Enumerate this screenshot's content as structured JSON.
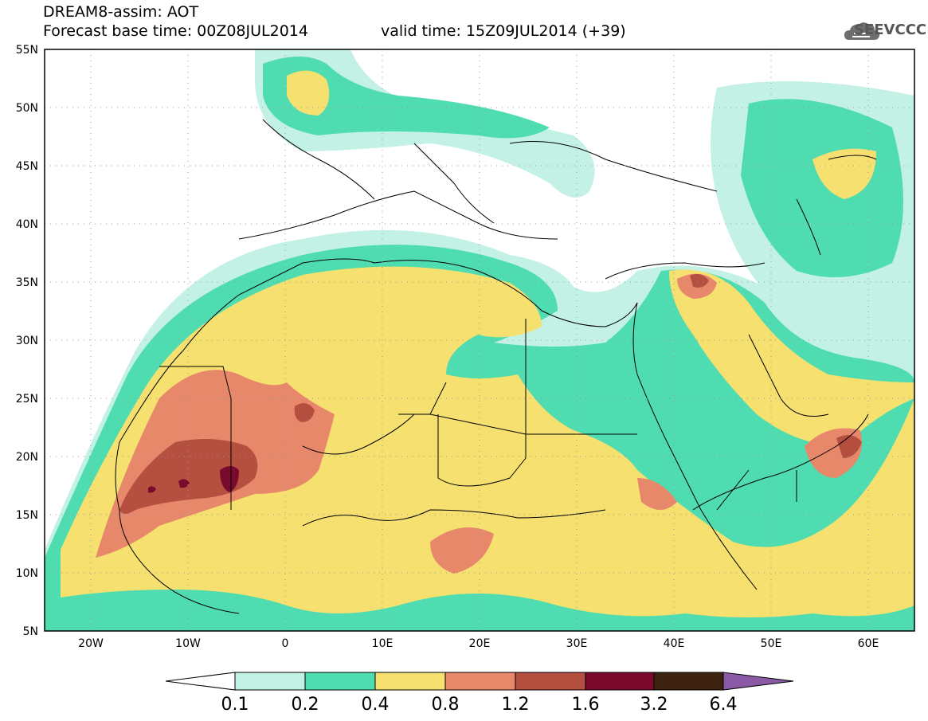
{
  "title": {
    "line1": "DREAM8-assim: AOT",
    "line2": "Forecast base time: 00Z08JUL2014",
    "valid": "valid time: 15Z09JUL2014 (+39)"
  },
  "logo": {
    "text": "SEEVCCC",
    "icon": "cloud-icon"
  },
  "axes": {
    "lat_labels": [
      "55N",
      "50N",
      "45N",
      "40N",
      "35N",
      "30N",
      "25N",
      "20N",
      "15N",
      "10N",
      "5N"
    ],
    "lon_labels": [
      "20W",
      "10W",
      "0",
      "10E",
      "20E",
      "30E",
      "40E",
      "50E",
      "60E"
    ]
  },
  "colorbar": {
    "labels": [
      "0.1",
      "0.2",
      "0.4",
      "0.8",
      "1.2",
      "1.6",
      "3.2",
      "6.4"
    ],
    "colors": [
      "#ffffff",
      "#c4f1e6",
      "#4fdcb0",
      "#f5e070",
      "#e8886b",
      "#b55040",
      "#7a0a2d",
      "#3e2210",
      "#8a5aa6"
    ]
  },
  "map_colors": {
    "c01": "#c4f1e6",
    "c02": "#4fdcb0",
    "c04": "#f5e070",
    "c08": "#e8886b",
    "c12": "#b55040",
    "c16": "#7a0a2d"
  }
}
